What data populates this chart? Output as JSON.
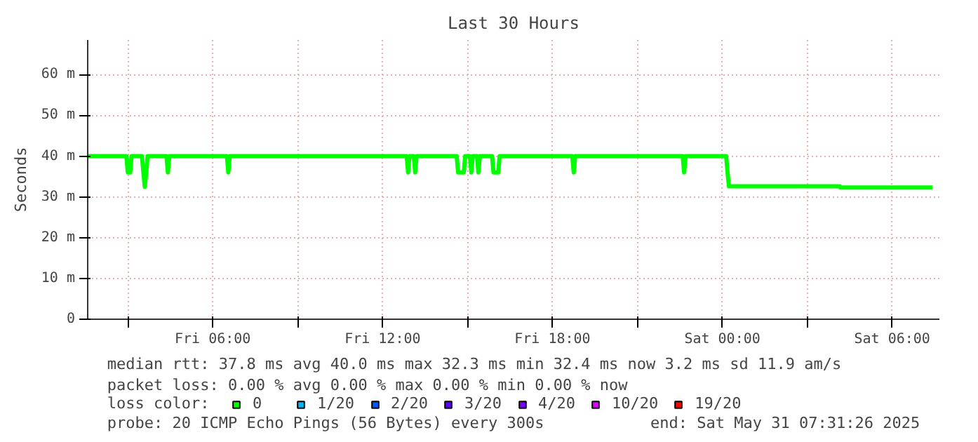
{
  "chart_data": {
    "type": "line",
    "title": "Last 30 Hours",
    "ylabel": "Seconds",
    "x": [
      "2025-05-30T01:36",
      "2025-05-30T02:57",
      "2025-05-30T03:00",
      "2025-05-30T03:05",
      "2025-05-30T03:08",
      "2025-05-30T03:30",
      "2025-05-30T03:33",
      "2025-05-30T03:36",
      "2025-05-30T03:39",
      "2025-05-30T03:42",
      "2025-05-30T04:22",
      "2025-05-30T04:25",
      "2025-05-30T04:28",
      "2025-05-30T06:30",
      "2025-05-30T06:33",
      "2025-05-30T06:36",
      "2025-05-30T12:51",
      "2025-05-30T12:54",
      "2025-05-30T12:57",
      "2025-05-30T13:06",
      "2025-05-30T13:09",
      "2025-05-30T13:12",
      "2025-05-30T14:37",
      "2025-05-30T14:40",
      "2025-05-30T14:52",
      "2025-05-30T14:55",
      "2025-05-30T15:05",
      "2025-05-30T15:08",
      "2025-05-30T15:11",
      "2025-05-30T15:20",
      "2025-05-30T15:23",
      "2025-05-30T15:26",
      "2025-05-30T15:52",
      "2025-05-30T15:55",
      "2025-05-30T16:05",
      "2025-05-30T16:08",
      "2025-05-30T18:42",
      "2025-05-30T18:45",
      "2025-05-30T18:48",
      "2025-05-30T22:36",
      "2025-05-30T22:39",
      "2025-05-30T22:42",
      "2025-05-31T00:08",
      "2025-05-31T00:11",
      "2025-05-31T00:14",
      "2025-05-31T04:09",
      "2025-05-31T04:10",
      "2025-05-31T07:25"
    ],
    "series": [
      {
        "name": "0",
        "color": "#00ff00",
        "values": [
          40,
          40,
          36,
          36,
          40,
          40,
          36,
          32.5,
          36,
          40,
          40,
          36,
          40,
          40,
          36,
          40,
          40,
          36,
          40,
          40,
          36,
          40,
          40,
          36,
          36,
          40,
          40,
          36,
          40,
          40,
          36,
          40,
          40,
          36,
          36,
          40,
          40,
          36,
          40,
          40,
          36,
          40,
          40,
          36,
          32.6,
          32.6,
          32.3,
          32.3
        ]
      },
      {
        "name": "1/20",
        "color": "#00b8ff",
        "values": [
          null,
          null,
          null,
          null,
          null,
          null,
          null,
          null,
          null,
          null,
          null,
          null,
          null,
          null,
          null,
          null,
          null,
          null,
          null,
          null,
          null,
          null,
          null,
          null,
          null,
          null,
          null,
          null,
          null,
          null,
          null,
          null,
          null,
          null,
          null,
          null,
          null,
          null,
          null,
          null,
          null,
          null,
          null,
          null,
          null,
          null,
          null,
          null
        ]
      },
      {
        "name": "2/20",
        "color": "#0059ff",
        "values": [
          null,
          null,
          null,
          null,
          null,
          null,
          null,
          null,
          null,
          null,
          null,
          null,
          null,
          null,
          null,
          null,
          null,
          null,
          null,
          null,
          null,
          null,
          null,
          null,
          null,
          null,
          null,
          null,
          null,
          null,
          null,
          null,
          null,
          null,
          null,
          null,
          null,
          null,
          null,
          null,
          null,
          null,
          null,
          null,
          null,
          null,
          null,
          null
        ]
      },
      {
        "name": "3/20",
        "color": "#5e00ff",
        "values": [
          null,
          null,
          null,
          null,
          null,
          null,
          null,
          null,
          null,
          null,
          null,
          null,
          null,
          null,
          null,
          null,
          null,
          null,
          null,
          null,
          null,
          null,
          null,
          null,
          null,
          null,
          null,
          null,
          null,
          null,
          null,
          null,
          null,
          null,
          null,
          null,
          null,
          null,
          null,
          null,
          null,
          null,
          null,
          null,
          null,
          null,
          null,
          null
        ]
      },
      {
        "name": "4/20",
        "color": "#7e00ff",
        "values": [
          null,
          null,
          null,
          null,
          null,
          null,
          null,
          null,
          null,
          null,
          null,
          null,
          null,
          null,
          null,
          null,
          null,
          null,
          null,
          null,
          null,
          null,
          null,
          null,
          null,
          null,
          null,
          null,
          null,
          null,
          null,
          null,
          null,
          null,
          null,
          null,
          null,
          null,
          null,
          null,
          null,
          null,
          null,
          null,
          null,
          null,
          null,
          null
        ]
      },
      {
        "name": "10/20",
        "color": "#dd00ff",
        "values": [
          null,
          null,
          null,
          null,
          null,
          null,
          null,
          null,
          null,
          null,
          null,
          null,
          null,
          null,
          null,
          null,
          null,
          null,
          null,
          null,
          null,
          null,
          null,
          null,
          null,
          null,
          null,
          null,
          null,
          null,
          null,
          null,
          null,
          null,
          null,
          null,
          null,
          null,
          null,
          null,
          null,
          null,
          null,
          null,
          null,
          null,
          null,
          null
        ]
      },
      {
        "name": "19/20",
        "color": "#ff0000",
        "values": [
          null,
          null,
          null,
          null,
          null,
          null,
          null,
          null,
          null,
          null,
          null,
          null,
          null,
          null,
          null,
          null,
          null,
          null,
          null,
          null,
          null,
          null,
          null,
          null,
          null,
          null,
          null,
          null,
          null,
          null,
          null,
          null,
          null,
          null,
          null,
          null,
          null,
          null,
          null,
          null,
          null,
          null,
          null,
          null,
          null,
          null,
          null,
          null
        ]
      }
    ],
    "legend_title": "loss color:",
    "legend": "bottom",
    "xlim": [
      "2025-05-30T01:35",
      "2025-05-31T07:40"
    ],
    "xticks": [
      {
        "value": "2025-05-30T03:00",
        "label": null
      },
      {
        "value": "2025-05-30T06:00",
        "label": "Fri 06:00"
      },
      {
        "value": "2025-05-30T09:00",
        "label": null
      },
      {
        "value": "2025-05-30T12:00",
        "label": "Fri 12:00"
      },
      {
        "value": "2025-05-30T15:00",
        "label": null
      },
      {
        "value": "2025-05-30T18:00",
        "label": "Fri 18:00"
      },
      {
        "value": "2025-05-30T21:00",
        "label": null
      },
      {
        "value": "2025-05-31T00:00",
        "label": "Sat 00:00"
      },
      {
        "value": "2025-05-31T03:00",
        "label": null
      },
      {
        "value": "2025-05-31T06:00",
        "label": "Sat 06:00"
      }
    ],
    "ylim": [
      0,
      68.5
    ],
    "yticks": [
      0,
      {
        "value": 10,
        "label": "10 m"
      },
      {
        "value": 20,
        "label": "20 m"
      },
      {
        "value": 30,
        "label": "30 m"
      },
      {
        "value": 40,
        "label": "40 m"
      },
      {
        "value": 50,
        "label": "50 m"
      },
      {
        "value": 60,
        "label": "60 m"
      }
    ],
    "grid": true,
    "marker": "none",
    "line_style": "solid",
    "annotations": [
      "median rtt:  37.8 ms avg  40.0 ms max  32.3 ms min  32.4 ms now  3.2 ms sd  11.9   am/s",
      "packet loss: 0.00 % avg  0.00 % max  0.00 % min  0.00 % now",
      "probe:       20 ICMP Echo Pings (56 Bytes) every 300s",
      "end: Sat May 31 07:31:26 2025"
    ]
  }
}
